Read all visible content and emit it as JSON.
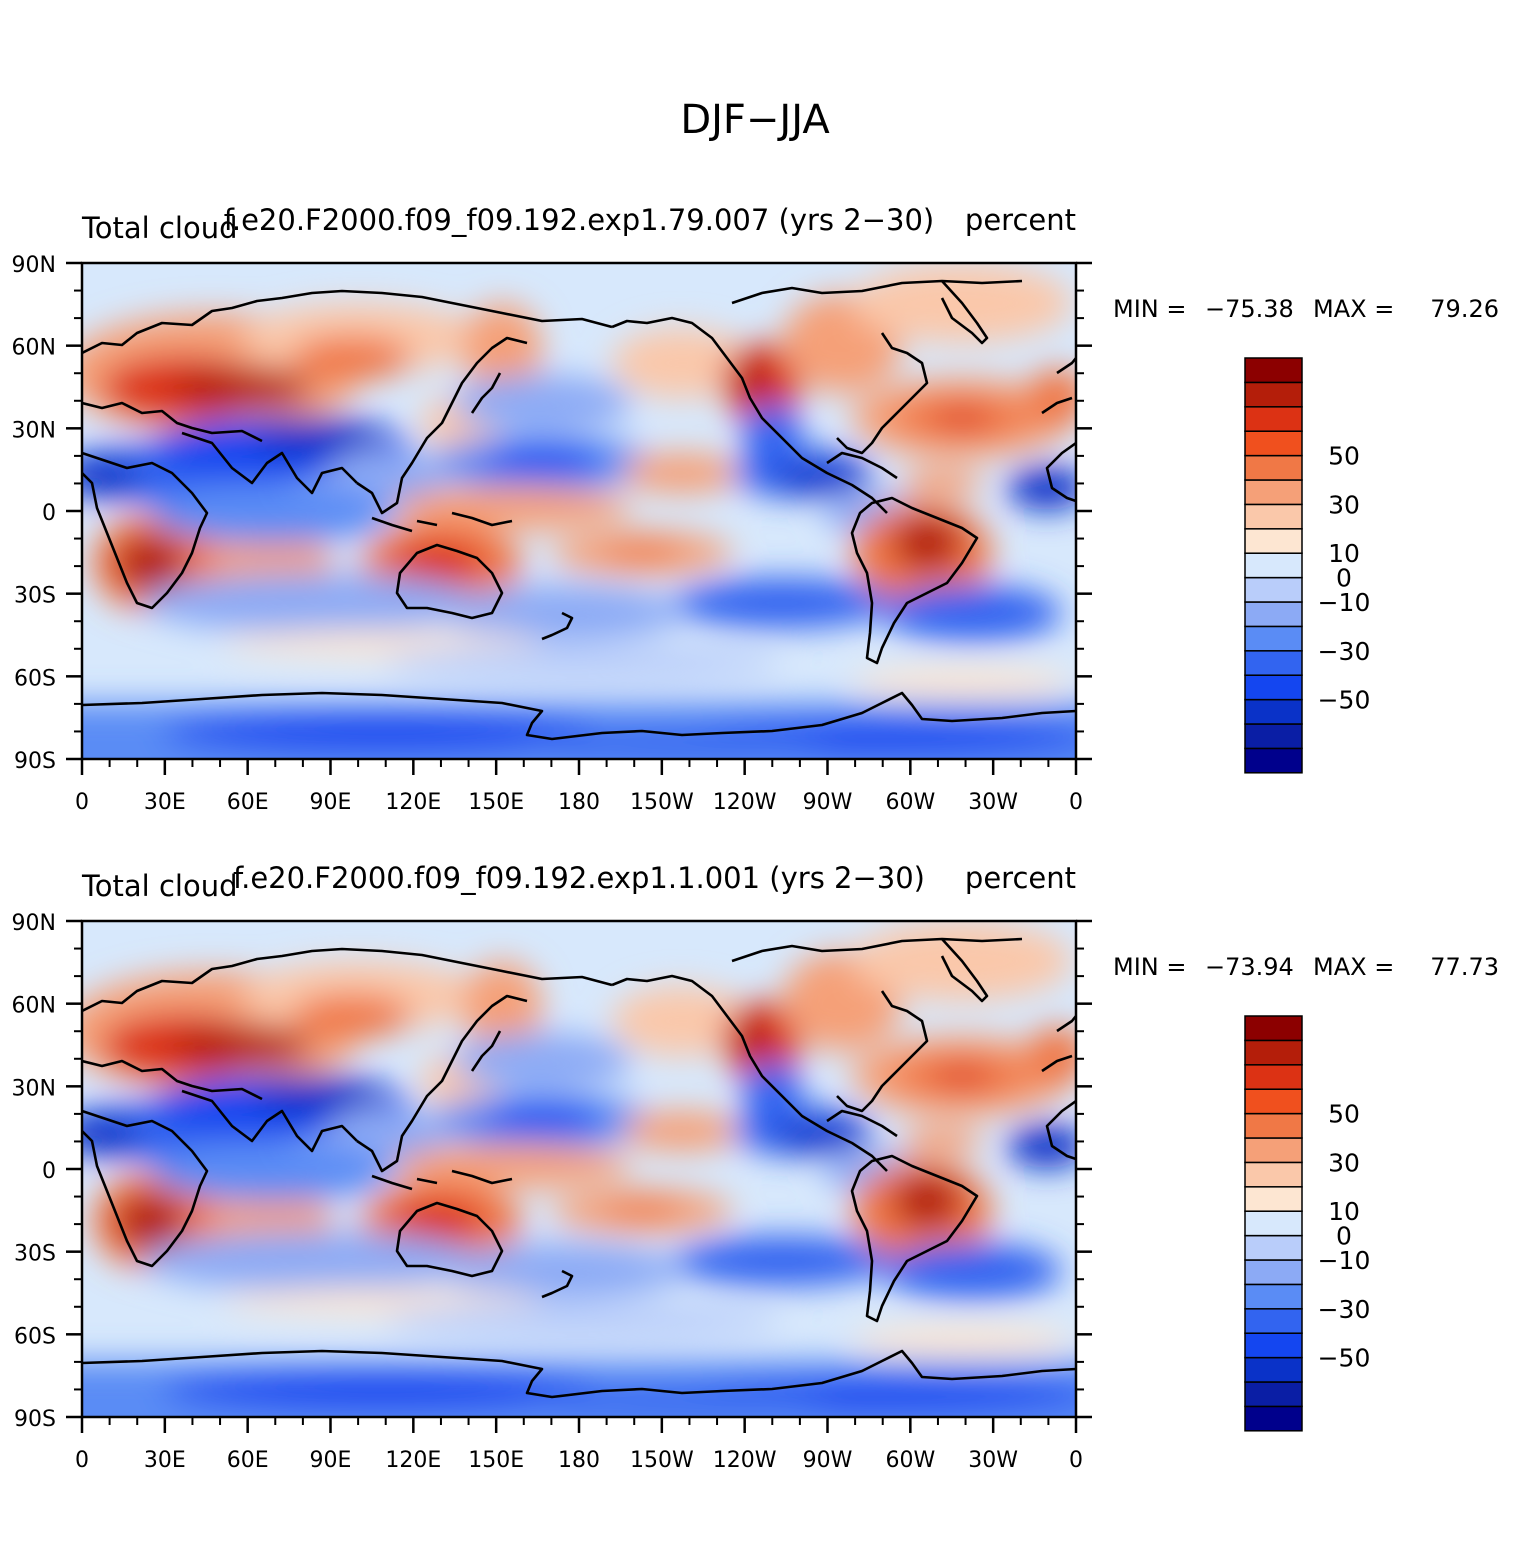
{
  "figure": {
    "title": "DJF−JJA"
  },
  "panels": [
    {
      "left_label": "Total cloud",
      "center_title": "f.e20.F2000.f09_f09.192.exp1.79.007 (yrs 2−30)",
      "units": "percent",
      "min_label": "MIN = ",
      "min_value": "−75.38",
      "max_label": "MAX = ",
      "max_value": "79.26"
    },
    {
      "left_label": "Total cloud",
      "center_title": "f.e20.F2000.f09_f09.192.exp1.1.001 (yrs 2−30)",
      "units": "percent",
      "min_label": "MIN = ",
      "min_value": "−73.94",
      "max_label": "MAX = ",
      "max_value": "77.73"
    }
  ],
  "axes": {
    "lat_ticks": [
      "90N",
      "60N",
      "30N",
      "0",
      "30S",
      "60S",
      "90S"
    ],
    "lon_ticks": [
      "0",
      "30E",
      "60E",
      "90E",
      "120E",
      "150E",
      "180",
      "150W",
      "120W",
      "90W",
      "60W",
      "30W",
      "0"
    ]
  },
  "colorbar": {
    "colors": [
      "#00008c",
      "#0a1ea5",
      "#0a32c8",
      "#1446f0",
      "#3264f0",
      "#5a8cf5",
      "#8caaf5",
      "#b9cdfa",
      "#d7e8fc",
      "#fde6d2",
      "#fac8aa",
      "#f5a078",
      "#f07846",
      "#f0501e",
      "#dc3214",
      "#b41e0a",
      "#8c0000"
    ],
    "labels": [
      "−50",
      "−30",
      "−10",
      "0",
      "10",
      "30",
      "50"
    ]
  },
  "chart_data": {
    "type": "heatmap",
    "variable": "Total cloud",
    "units": "percent",
    "season_difference": "DJF−JJA",
    "levels": [
      -70,
      -60,
      -50,
      -40,
      -30,
      -20,
      -10,
      -5,
      0,
      5,
      10,
      20,
      30,
      40,
      50,
      60,
      70
    ],
    "lat_range": [
      -90,
      90
    ],
    "lon_range": [
      0,
      360
    ],
    "panels": [
      {
        "case": "f.e20.F2000.f09_f09.192.exp1.79.007",
        "years": "2−30",
        "min": -75.38,
        "max": 79.26
      },
      {
        "case": "f.e20.F2000.f09_f09.192.exp1.1.001",
        "years": "2−30",
        "min": -73.94,
        "max": 77.73
      }
    ]
  }
}
